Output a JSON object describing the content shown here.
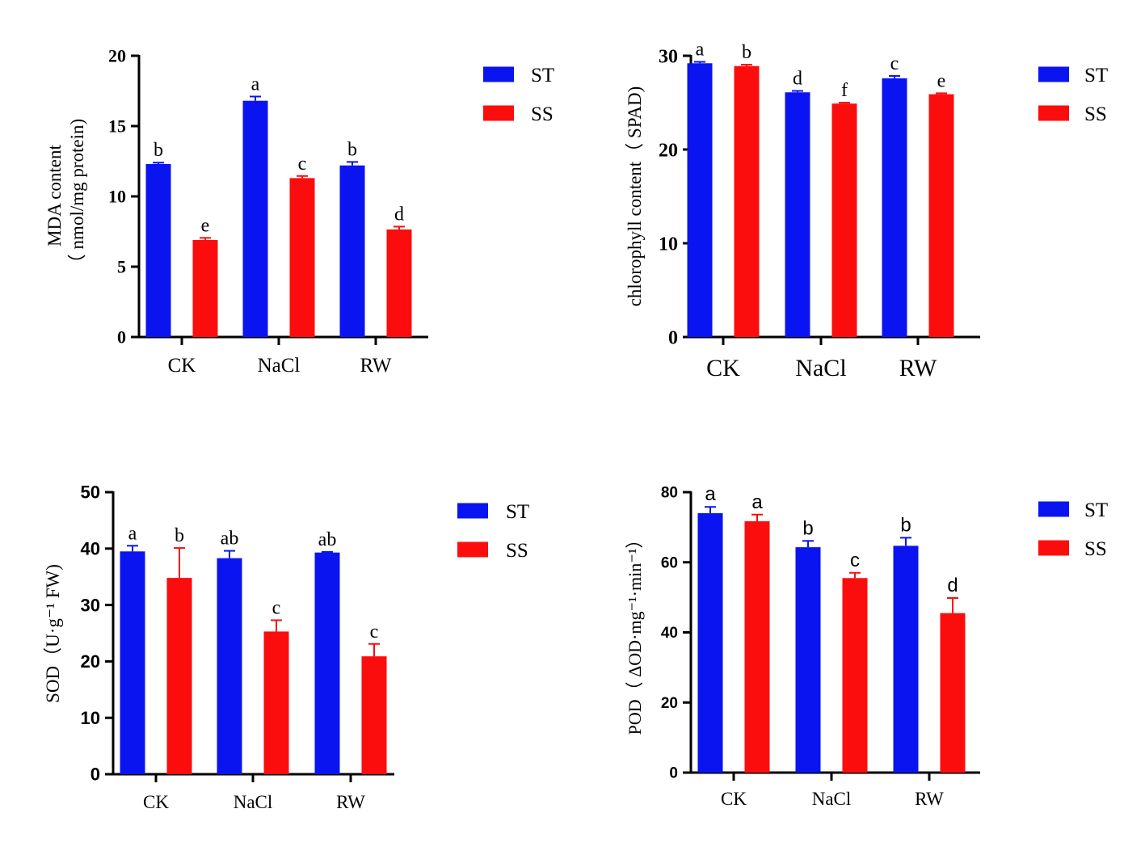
{
  "colors": {
    "ST": "#0a14f0",
    "SS": "#fc0d0d",
    "axis": "#000000"
  },
  "legend_labels": [
    "ST",
    "SS"
  ],
  "chart_data": [
    {
      "type": "bar",
      "categories": [
        "CK",
        "NaCl",
        "RW"
      ],
      "series": [
        {
          "name": "ST",
          "values": [
            12.3,
            16.8,
            12.2
          ],
          "errors": [
            0.1,
            0.3,
            0.25
          ],
          "labels": [
            "b",
            "a",
            "b"
          ]
        },
        {
          "name": "SS",
          "values": [
            6.9,
            11.3,
            7.65
          ],
          "errors": [
            0.15,
            0.15,
            0.2
          ],
          "labels": [
            "e",
            "c",
            "d"
          ]
        }
      ],
      "ylabel_lines": [
        "MDA content",
        "（ nmol/mg protein)"
      ],
      "ylim": [
        0,
        20
      ],
      "yticks": [
        0,
        5,
        10,
        15,
        20
      ],
      "legend_placement": "top-right",
      "grid": false
    },
    {
      "type": "bar",
      "categories": [
        "CK",
        "NaCl",
        "RW"
      ],
      "series": [
        {
          "name": "ST",
          "values": [
            29.2,
            26.1,
            27.6
          ],
          "errors": [
            0.15,
            0.15,
            0.25
          ],
          "labels": [
            "a",
            "d",
            "c"
          ]
        },
        {
          "name": "SS",
          "values": [
            28.9,
            24.9,
            25.9
          ],
          "errors": [
            0.15,
            0.1,
            0.1
          ],
          "labels": [
            "b",
            "f",
            "e"
          ]
        }
      ],
      "ylabel_lines": [
        "chlorophyll content（ SPAD)"
      ],
      "ylim": [
        0,
        30
      ],
      "yticks": [
        0,
        10,
        20,
        30
      ],
      "legend_placement": "top-right",
      "grid": false
    },
    {
      "type": "bar",
      "categories": [
        "CK",
        "NaCl",
        "RW"
      ],
      "series": [
        {
          "name": "ST",
          "values": [
            39.5,
            38.3,
            39.3
          ],
          "errors": [
            1.0,
            1.3,
            0.1
          ],
          "labels": [
            "a",
            "ab",
            "ab"
          ]
        },
        {
          "name": "SS",
          "values": [
            34.8,
            25.3,
            20.9
          ],
          "errors": [
            5.3,
            2.0,
            2.2
          ],
          "labels": [
            "b",
            "c",
            "c"
          ]
        }
      ],
      "ylabel_lines": [
        "SOD（U·g⁻¹ FW)"
      ],
      "ylim": [
        0,
        50
      ],
      "yticks": [
        0,
        10,
        20,
        30,
        40,
        50
      ],
      "legend_placement": "top-right",
      "grid": false
    },
    {
      "type": "bar",
      "categories": [
        "CK",
        "NaCl",
        "RW"
      ],
      "series": [
        {
          "name": "ST",
          "values": [
            74,
            64.3,
            64.7
          ],
          "errors": [
            1.8,
            1.8,
            2.3
          ],
          "labels": [
            "a",
            "b",
            "b"
          ]
        },
        {
          "name": "SS",
          "values": [
            71.7,
            55.5,
            45.5
          ],
          "errors": [
            1.9,
            1.5,
            4.3
          ],
          "labels": [
            "a",
            "c",
            "d"
          ]
        }
      ],
      "ylabel_lines": [
        "POD（ ΔOD·mg⁻¹·min⁻¹）"
      ],
      "ylim": [
        0,
        80
      ],
      "yticks": [
        0,
        20,
        40,
        60,
        80
      ],
      "legend_placement": "top-right",
      "grid": false
    }
  ]
}
